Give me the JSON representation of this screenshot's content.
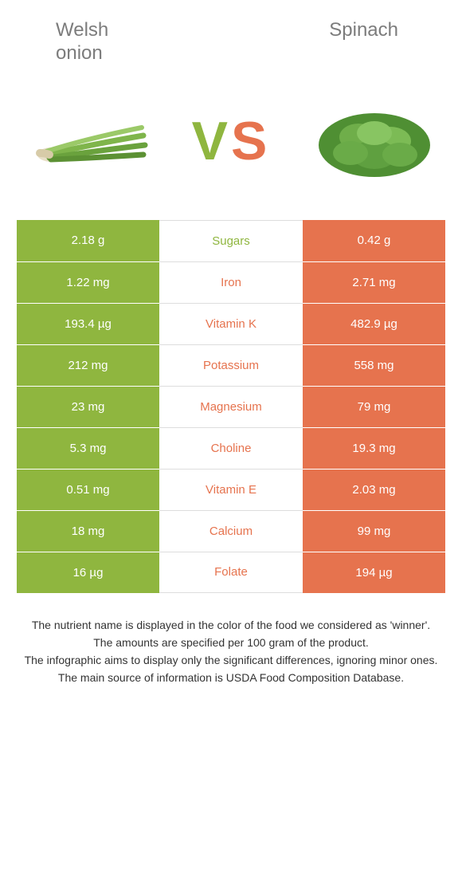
{
  "left_food": "Welsh onion",
  "right_food": "Spinach",
  "vs_v": "V",
  "vs_s": "S",
  "colors": {
    "left": "#8fb63f",
    "right": "#e6734e",
    "mid_text_left_winner": "#8fb63f",
    "mid_text_right_winner": "#e6734e"
  },
  "rows": [
    {
      "label": "Sugars",
      "left": "2.18 g",
      "right": "0.42 g",
      "winner": "left"
    },
    {
      "label": "Iron",
      "left": "1.22 mg",
      "right": "2.71 mg",
      "winner": "right"
    },
    {
      "label": "Vitamin K",
      "left": "193.4 µg",
      "right": "482.9 µg",
      "winner": "right"
    },
    {
      "label": "Potassium",
      "left": "212 mg",
      "right": "558 mg",
      "winner": "right"
    },
    {
      "label": "Magnesium",
      "left": "23 mg",
      "right": "79 mg",
      "winner": "right"
    },
    {
      "label": "Choline",
      "left": "5.3 mg",
      "right": "19.3 mg",
      "winner": "right"
    },
    {
      "label": "Vitamin E",
      "left": "0.51 mg",
      "right": "2.03 mg",
      "winner": "right"
    },
    {
      "label": "Calcium",
      "left": "18 mg",
      "right": "99 mg",
      "winner": "right"
    },
    {
      "label": "Folate",
      "left": "16 µg",
      "right": "194 µg",
      "winner": "right"
    }
  ],
  "footer": {
    "l1": "The nutrient name is displayed in the color of the food we considered as 'winner'.",
    "l2": "The amounts are specified per 100 gram of the product.",
    "l3": "The infographic aims to display only the significant differences, ignoring minor ones.",
    "l4": "The main source of information is USDA Food Composition Database."
  }
}
